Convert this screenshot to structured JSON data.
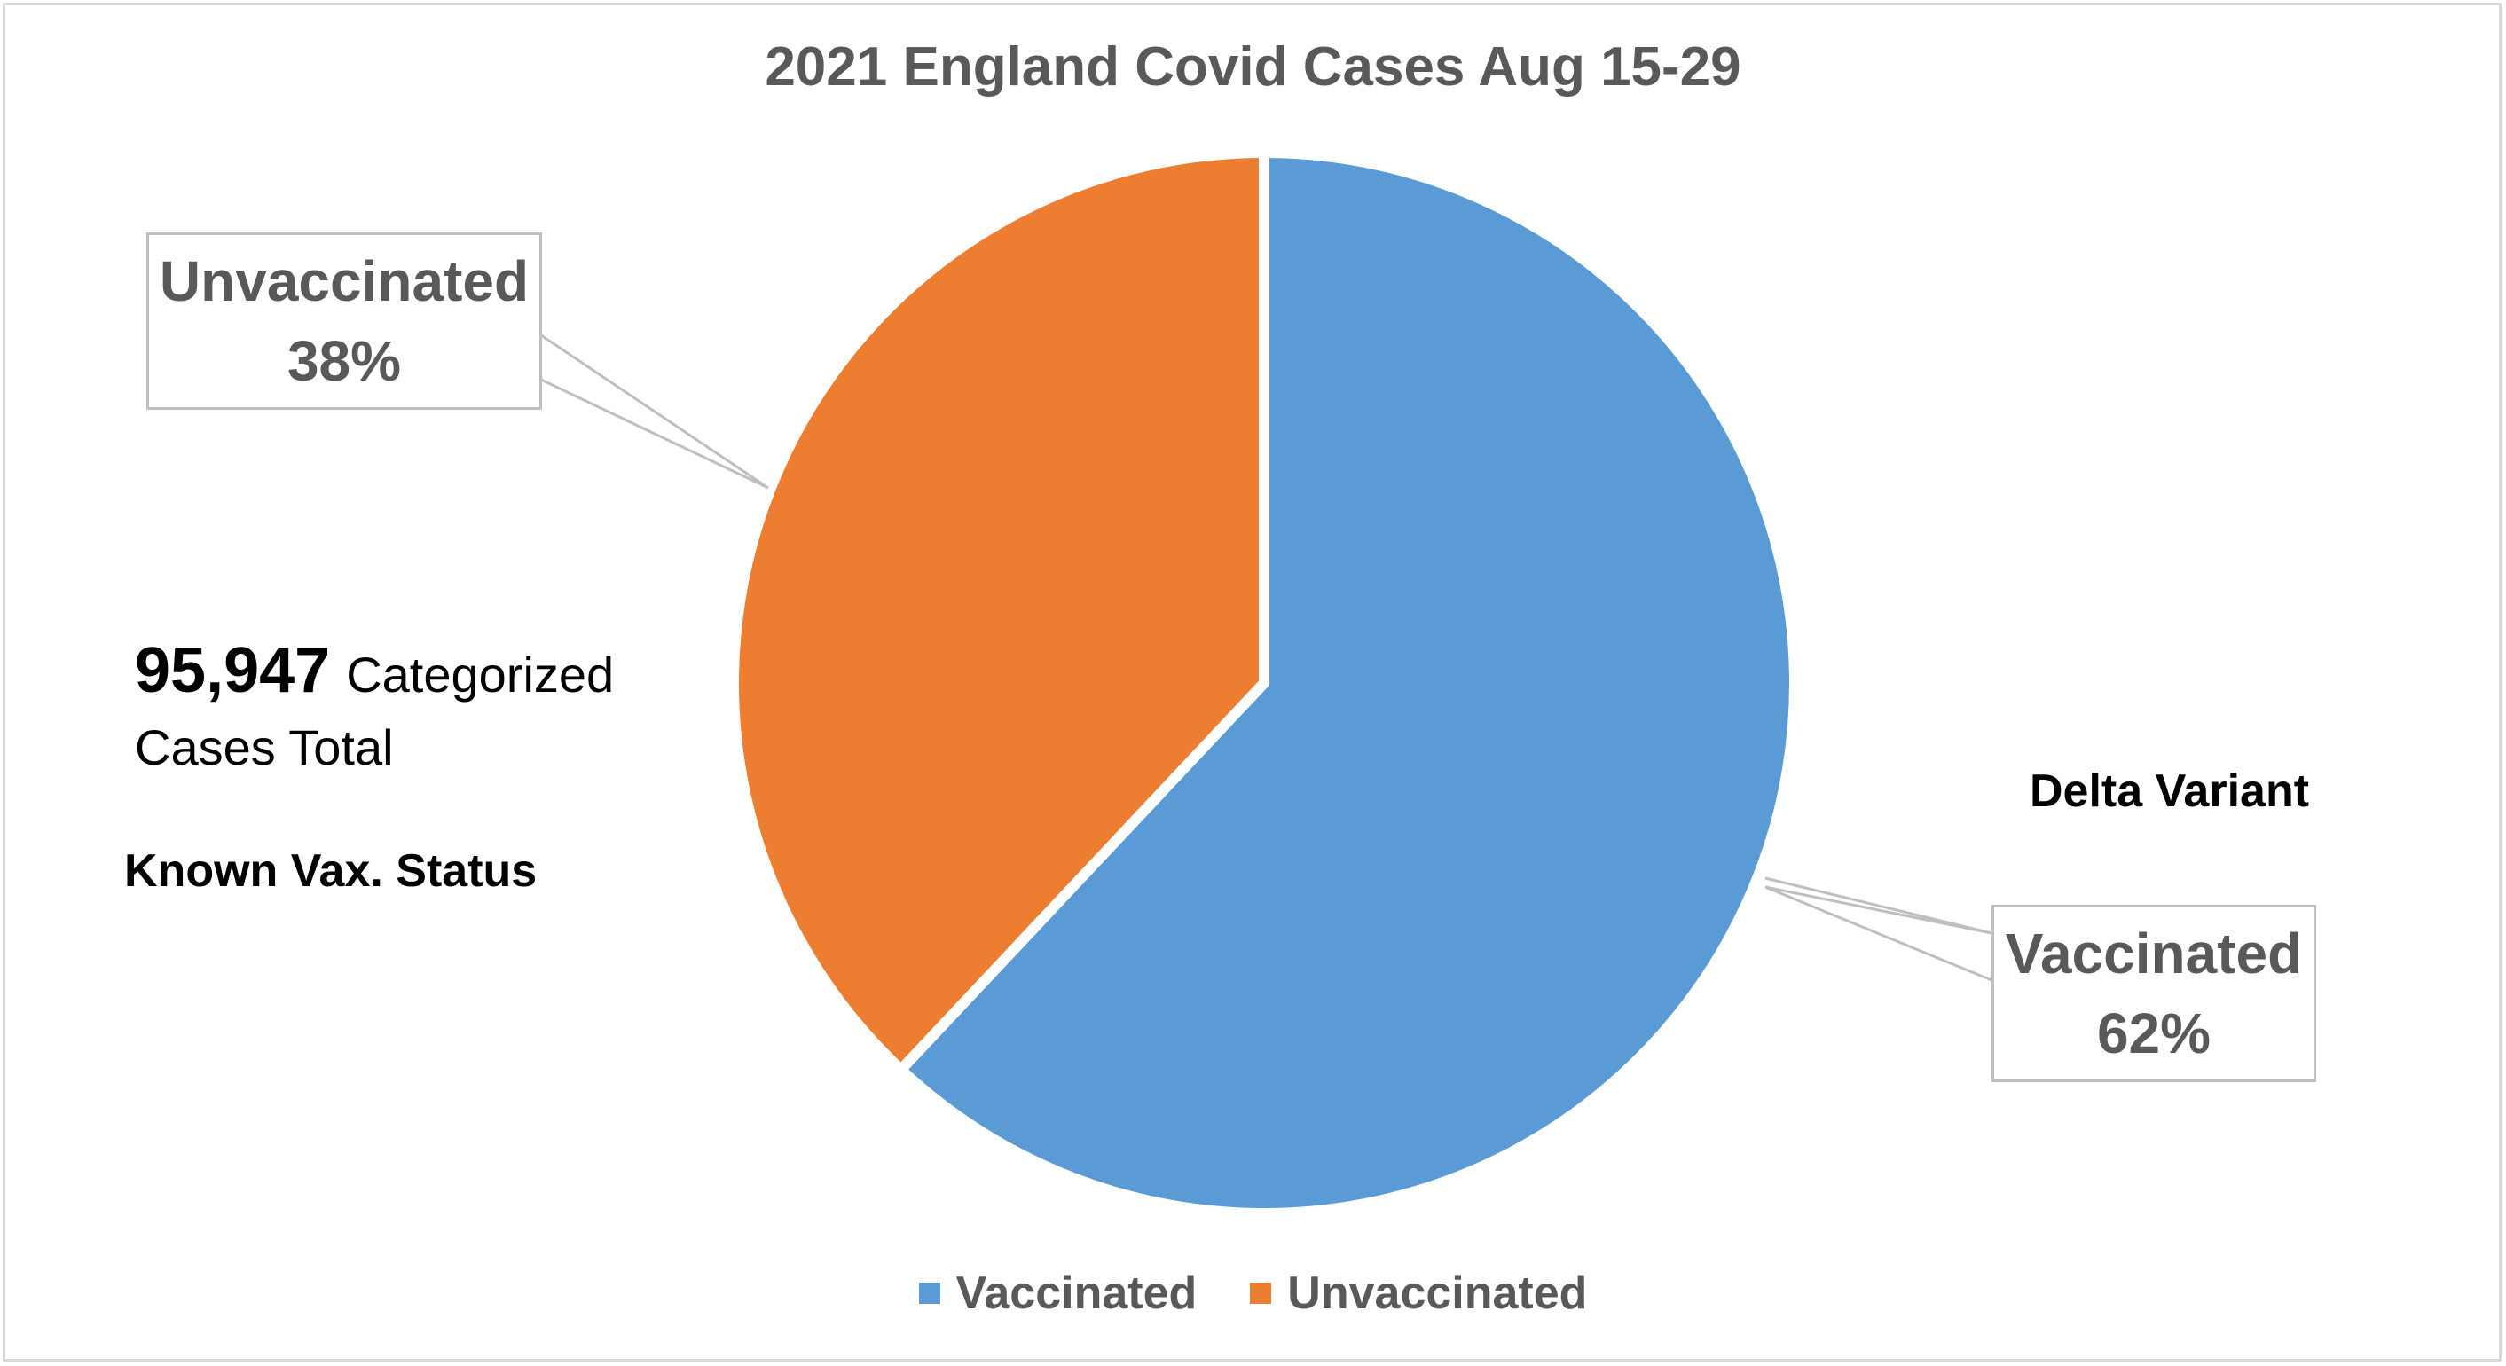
{
  "chart_data": {
    "type": "pie",
    "title": "2021 England Covid Cases Aug 15-29",
    "categories": [
      "Vaccinated",
      "Unvaccinated"
    ],
    "values": [
      62,
      38
    ],
    "value_unit": "%",
    "colors": [
      "#5b9bd5",
      "#ed7d31"
    ],
    "data_labels": [
      {
        "name": "Vaccinated",
        "percent": "62%"
      },
      {
        "name": "Unvaccinated",
        "percent": "38%"
      }
    ],
    "legend": {
      "placement": "bottom",
      "entries": [
        "Vaccinated",
        "Unvaccinated"
      ]
    },
    "annotations": {
      "total_number": "95,947",
      "total_text_1": "Categorized",
      "total_text_2": "Cases Total",
      "status": "Known Vax. Status",
      "variant": "Delta Variant"
    }
  }
}
